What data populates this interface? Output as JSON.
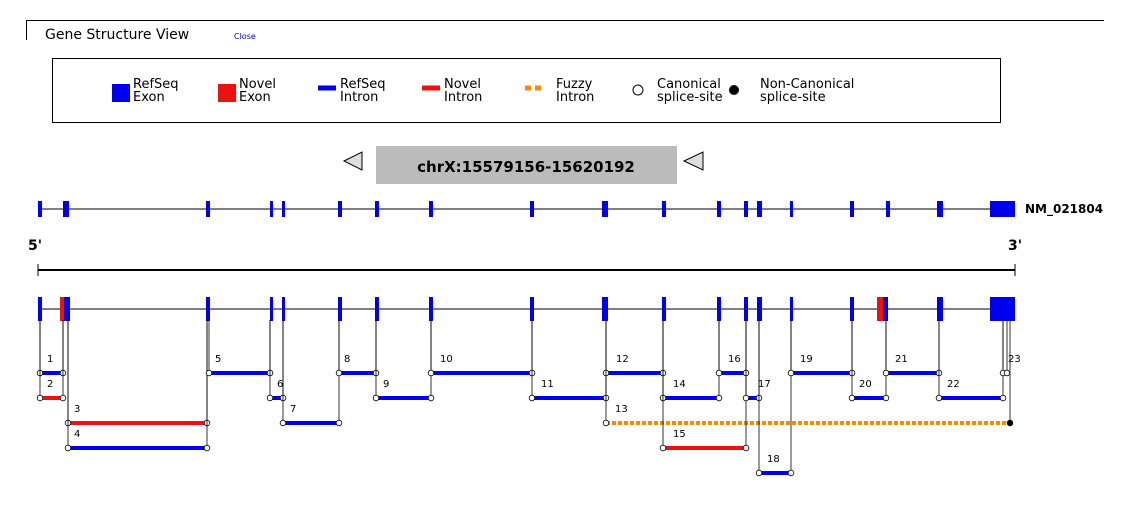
{
  "header": {
    "title": "Gene Structure View",
    "close_label": "Close"
  },
  "legend": [
    {
      "label1": "RefSeq",
      "label2": "Exon",
      "kind": "box",
      "color": "#0000ee"
    },
    {
      "label1": "Novel",
      "label2": "Exon",
      "kind": "box",
      "color": "#ee1111"
    },
    {
      "label1": "RefSeq",
      "label2": "Intron",
      "kind": "line",
      "color": "#0000ee"
    },
    {
      "label1": "Novel",
      "label2": "Intron",
      "kind": "line",
      "color": "#ee1111"
    },
    {
      "label1": "Fuzzy",
      "label2": "Intron",
      "kind": "dashed",
      "color": "#ff8800"
    },
    {
      "label1": "Canonical",
      "label2": "splice-site",
      "kind": "open-circle",
      "color": "#000000"
    },
    {
      "label1": "Non-Canonical",
      "label2": "splice-site",
      "kind": "filled-circle",
      "color": "#000000"
    }
  ],
  "navigation": {
    "region": "chrX:15579156-15620192",
    "left_arrow": "left-arrow-icon",
    "right_arrow": "left-arrow-icon"
  },
  "refseq_track": {
    "name": "NM_021804"
  },
  "scale": {
    "five_prime": "5'",
    "three_prime": "3'"
  },
  "colors": {
    "refseq": "#0000ee",
    "novel": "#ee1111",
    "fuzzy": "#ff8800",
    "region_box": "#bbbbbb"
  },
  "introns": [
    {
      "label": "1",
      "type": "refseq"
    },
    {
      "label": "2",
      "type": "novel"
    },
    {
      "label": "3",
      "type": "novel"
    },
    {
      "label": "4",
      "type": "refseq"
    },
    {
      "label": "5",
      "type": "refseq"
    },
    {
      "label": "6",
      "type": "refseq"
    },
    {
      "label": "7",
      "type": "refseq"
    },
    {
      "label": "8",
      "type": "refseq"
    },
    {
      "label": "9",
      "type": "refseq"
    },
    {
      "label": "10",
      "type": "refseq"
    },
    {
      "label": "11",
      "type": "refseq"
    },
    {
      "label": "12",
      "type": "refseq"
    },
    {
      "label": "13",
      "type": "fuzzy"
    },
    {
      "label": "14",
      "type": "refseq"
    },
    {
      "label": "15",
      "type": "novel"
    },
    {
      "label": "16",
      "type": "refseq"
    },
    {
      "label": "17",
      "type": "refseq"
    },
    {
      "label": "18",
      "type": "refseq"
    },
    {
      "label": "19",
      "type": "refseq"
    },
    {
      "label": "20",
      "type": "refseq"
    },
    {
      "label": "21",
      "type": "refseq"
    },
    {
      "label": "22",
      "type": "refseq"
    },
    {
      "label": "23",
      "type": "refseq"
    }
  ]
}
